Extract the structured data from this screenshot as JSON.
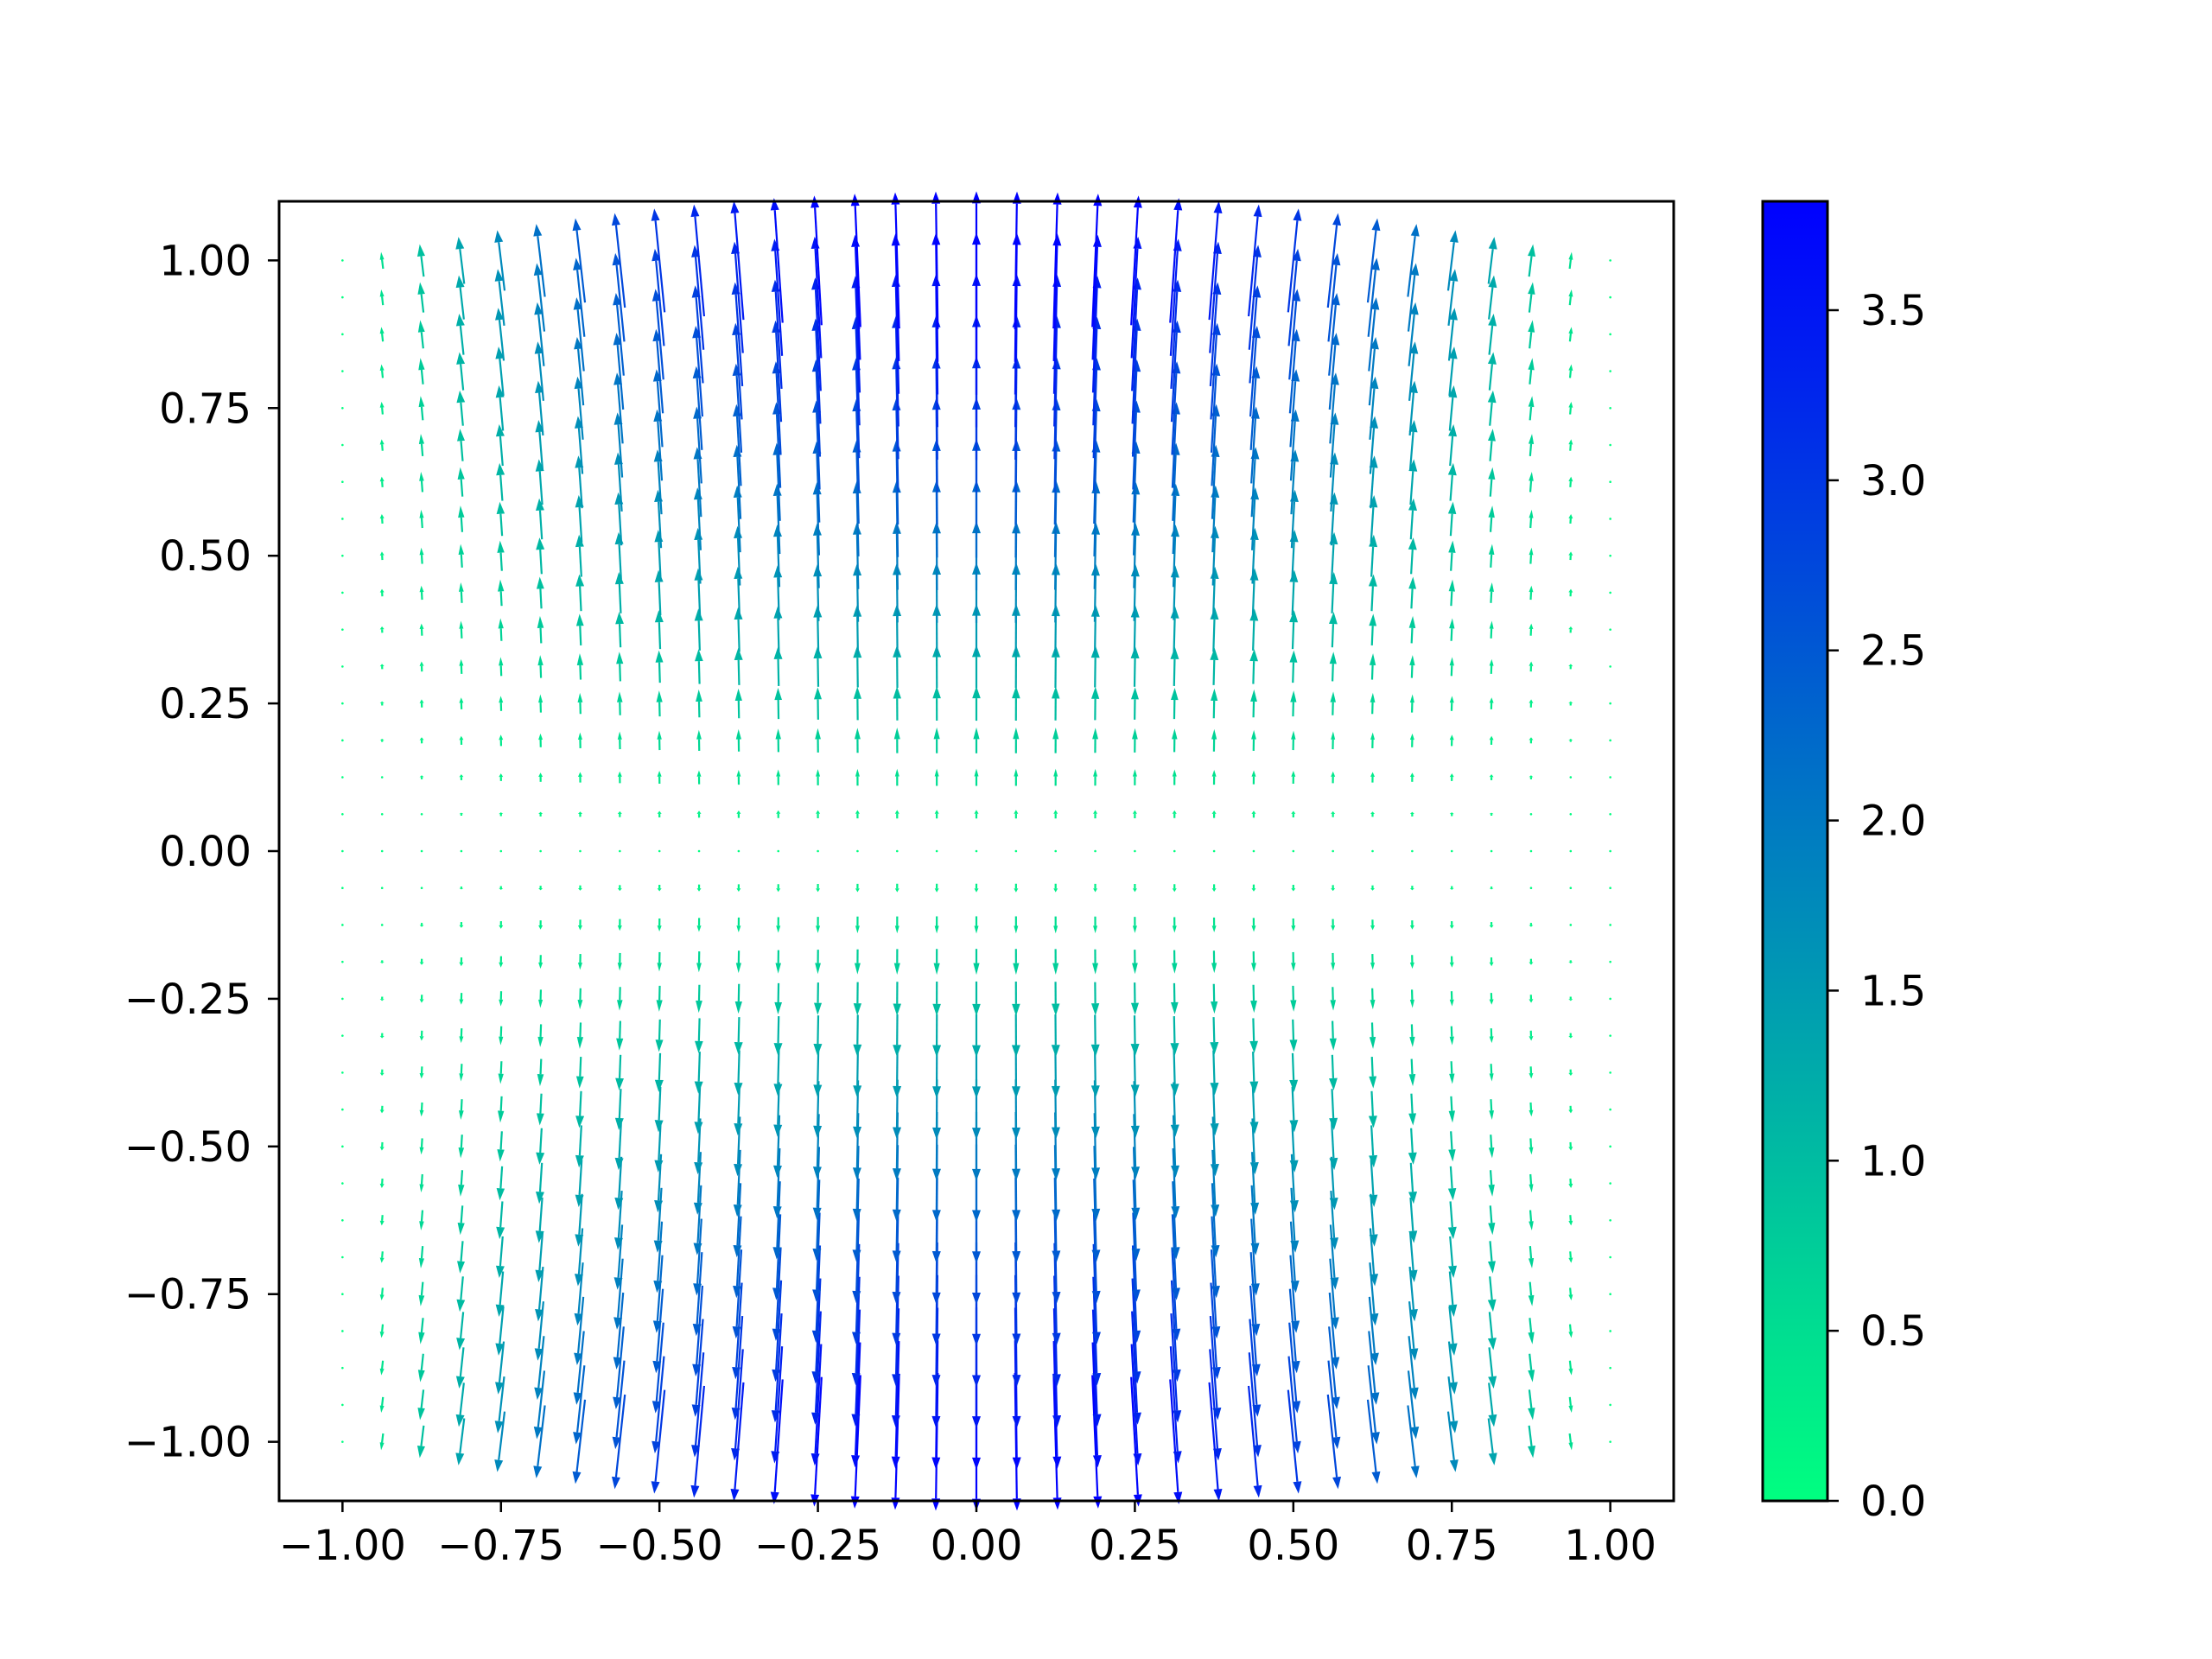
{
  "chart_data": {
    "type": "quiver",
    "title": "",
    "xlabel": "",
    "ylabel": "",
    "xlim": [
      -1.1,
      1.1
    ],
    "ylim": [
      -1.1,
      1.1
    ],
    "grid": false,
    "grid_x": {
      "start": -1.0,
      "stop": 1.0,
      "count": 33
    },
    "grid_y": {
      "start": -1.0,
      "stop": 1.0,
      "count": 33
    },
    "field": "u = sin(pi*x)*y^2*2, v = (1-x^2)*2*y*2",
    "x_ticks": [
      {
        "value": -1.0,
        "label": "−1.00"
      },
      {
        "value": -0.75,
        "label": "−0.75"
      },
      {
        "value": -0.5,
        "label": "−0.50"
      },
      {
        "value": -0.25,
        "label": "−0.25"
      },
      {
        "value": 0.0,
        "label": "0.00"
      },
      {
        "value": 0.25,
        "label": "0.25"
      },
      {
        "value": 0.5,
        "label": "0.50"
      },
      {
        "value": 0.75,
        "label": "0.75"
      },
      {
        "value": 1.0,
        "label": "1.00"
      }
    ],
    "y_ticks": [
      {
        "value": 1.0,
        "label": "1.00"
      },
      {
        "value": 0.75,
        "label": "0.75"
      },
      {
        "value": 0.5,
        "label": "0.50"
      },
      {
        "value": 0.25,
        "label": "0.25"
      },
      {
        "value": 0.0,
        "label": "0.00"
      },
      {
        "value": -0.25,
        "label": "−0.25"
      },
      {
        "value": -0.5,
        "label": "−0.50"
      },
      {
        "value": -0.75,
        "label": "−0.75"
      },
      {
        "value": -1.0,
        "label": "−1.00"
      }
    ],
    "colorbar": {
      "cmap": "winter",
      "min": 0.0,
      "max": 3.82,
      "color_low": "#00ff80",
      "color_high": "#0000ff",
      "ticks": [
        {
          "value": 0.0,
          "label": "0.0"
        },
        {
          "value": 0.5,
          "label": "0.5"
        },
        {
          "value": 1.0,
          "label": "1.0"
        },
        {
          "value": 1.5,
          "label": "1.5"
        },
        {
          "value": 2.0,
          "label": "2.0"
        },
        {
          "value": 2.5,
          "label": "2.5"
        },
        {
          "value": 3.0,
          "label": "3.0"
        },
        {
          "value": 3.5,
          "label": "3.5"
        }
      ]
    }
  }
}
